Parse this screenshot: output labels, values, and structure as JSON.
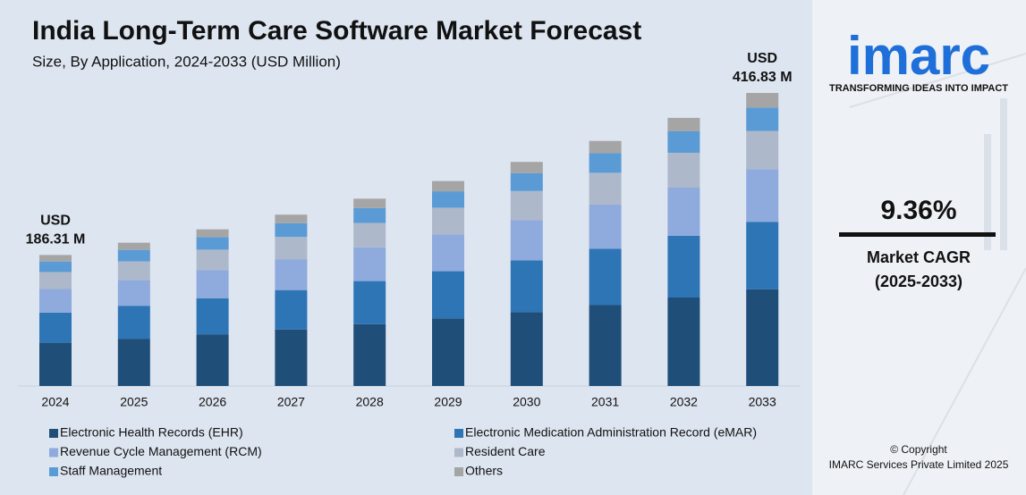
{
  "chart_data": {
    "type": "stacked-bar",
    "title": "India Long-Term Care Software Market Forecast",
    "subtitle": "Size, By Application, 2024-2033 (USD Million)",
    "categories": [
      "2024",
      "2025",
      "2026",
      "2027",
      "2028",
      "2029",
      "2030",
      "2031",
      "2032",
      "2033"
    ],
    "series": [
      {
        "name": "Electronic Health Records (EHR)",
        "color": "#1f4e79",
        "values": [
          61.5,
          67.2,
          73.5,
          80.4,
          87.9,
          96.2,
          105.2,
          115.0,
          125.8,
          137.6
        ]
      },
      {
        "name": "Electronic Medication Administration Record (eMAR)",
        "color": "#2e75b6",
        "values": [
          42.9,
          46.9,
          51.3,
          56.0,
          61.3,
          67.0,
          73.3,
          80.2,
          87.7,
          95.9
        ]
      },
      {
        "name": "Revenue Cycle Management (RCM)",
        "color": "#8faadc",
        "values": [
          33.5,
          36.7,
          40.1,
          43.9,
          48.0,
          52.5,
          57.4,
          62.7,
          68.6,
          75.0
        ]
      },
      {
        "name": "Resident Care",
        "color": "#adb9ca",
        "values": [
          24.2,
          26.5,
          29.0,
          31.7,
          34.6,
          37.9,
          41.4,
          45.3,
          49.6,
          54.2
        ]
      },
      {
        "name": "Staff Management",
        "color": "#5b9bd5",
        "values": [
          14.9,
          16.3,
          17.8,
          19.5,
          21.3,
          23.3,
          25.5,
          27.9,
          30.5,
          33.3
        ]
      },
      {
        "name": "Others",
        "color": "#a5a5a5",
        "values": [
          9.3,
          10.2,
          11.1,
          12.2,
          13.3,
          14.6,
          15.9,
          17.4,
          19.1,
          20.8
        ]
      }
    ],
    "first_total_label": [
      "USD",
      "186.31 M"
    ],
    "last_total_label": [
      "USD",
      "416.83 M"
    ]
  },
  "sidebar": {
    "logo": "imarc",
    "tagline": "TRANSFORMING IDEAS INTO IMPACT",
    "cagr": "9.36%",
    "cagr_label": "Market CAGR",
    "cagr_period": "(2025-2033)",
    "copyright": "© Copyright",
    "company": "IMARC Services Private Limited 2025"
  }
}
